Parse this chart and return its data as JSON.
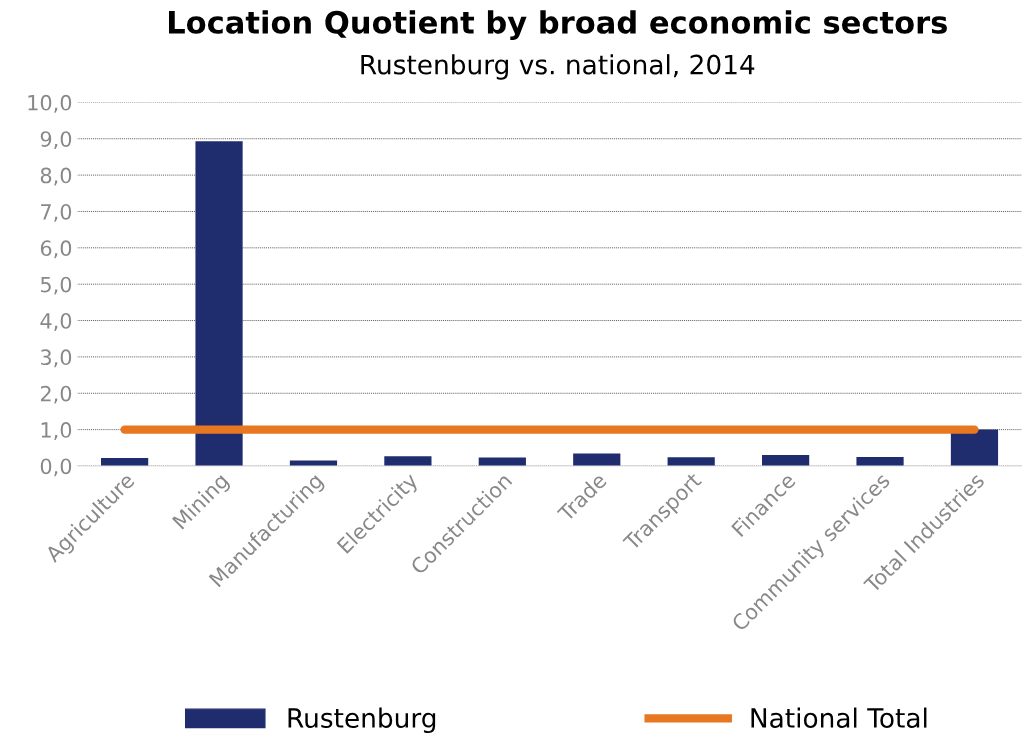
{
  "chart_data": {
    "type": "bar",
    "title": "Location Quotient by broad economic sectors",
    "subtitle": "Rustenburg vs. national, 2014",
    "categories": [
      "Agriculture",
      "Mining",
      "Manufacturing",
      "Electricity",
      "Construction",
      "Trade",
      "Transport",
      "Finance",
      "Community services",
      "Total Industries"
    ],
    "series": [
      {
        "name": "Rustenburg",
        "color": "#1f2d6e",
        "values": [
          0.22,
          8.93,
          0.15,
          0.27,
          0.23,
          0.34,
          0.24,
          0.3,
          0.25,
          1.0
        ]
      },
      {
        "name": "National Total",
        "type": "line",
        "color": "#e87722",
        "values": [
          1,
          1,
          1,
          1,
          1,
          1,
          1,
          1,
          1,
          1
        ]
      }
    ],
    "ylim": [
      0,
      10
    ],
    "yticks": [
      {
        "value": 0,
        "label": "0,0"
      },
      {
        "value": 1,
        "label": "1,0"
      },
      {
        "value": 2,
        "label": "2,0"
      },
      {
        "value": 3,
        "label": "3,0"
      },
      {
        "value": 4,
        "label": "4,0"
      },
      {
        "value": 5,
        "label": "5,0"
      },
      {
        "value": 6,
        "label": "6,0"
      },
      {
        "value": 7,
        "label": "7,0"
      },
      {
        "value": 8,
        "label": "8,0"
      },
      {
        "value": 9,
        "label": "9,0"
      },
      {
        "value": 10,
        "label": "10,0"
      }
    ],
    "grid": "y",
    "legend": "bottom"
  }
}
